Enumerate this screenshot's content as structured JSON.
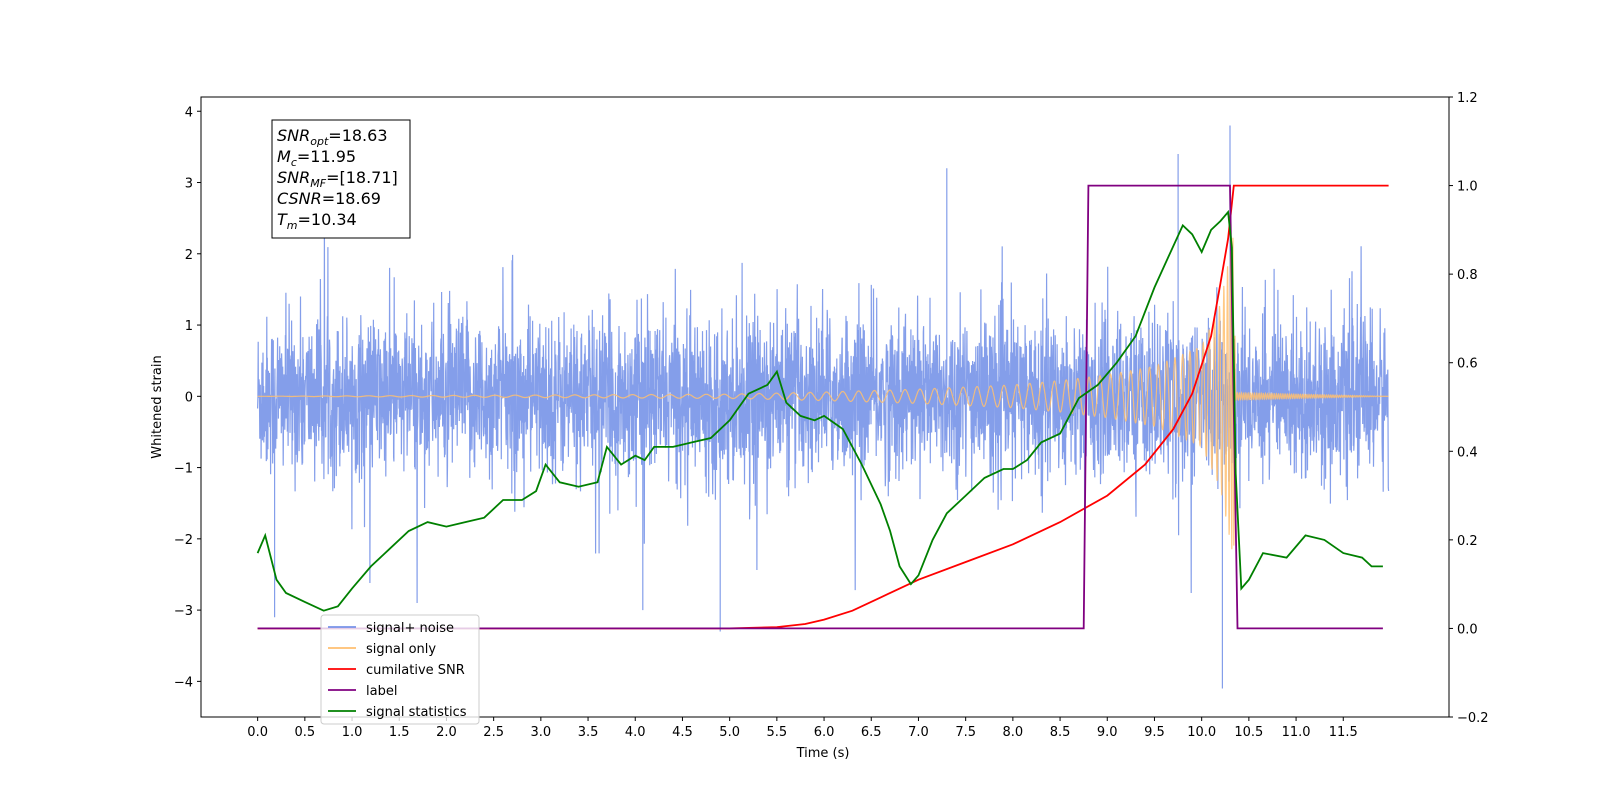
{
  "chart_data": {
    "type": "line",
    "xlabel": "Time (s)",
    "ylabel": "Whitened strain",
    "xlim": [
      -0.6,
      12.62
    ],
    "ylim": [
      -4.5,
      4.2
    ],
    "y2lim": [
      -0.2,
      1.2
    ],
    "grid": false,
    "legend_position": "lower-left",
    "x_ticks": [
      "0.0",
      "0.5",
      "1.0",
      "1.5",
      "2.0",
      "2.5",
      "3.0",
      "3.5",
      "4.0",
      "4.5",
      "5.0",
      "5.5",
      "6.0",
      "6.5",
      "7.0",
      "7.5",
      "8.0",
      "8.5",
      "9.0",
      "9.5",
      "10.0",
      "10.5",
      "11.0",
      "11.5"
    ],
    "y_ticks": [
      "4",
      "3",
      "2",
      "1",
      "0",
      "−1",
      "−2",
      "−3",
      "−4"
    ],
    "y2_ticks": [
      "1.2",
      "1.0",
      "0.8",
      "0.6",
      "0.4",
      "0.2",
      "0.0",
      "−0.2"
    ],
    "annotation_lines": [
      {
        "base": "SNR",
        "sub": "opt",
        "value": "=18.63"
      },
      {
        "base": "M",
        "sub": "c",
        "value": "=11.95"
      },
      {
        "base": "SNR",
        "sub": "MF",
        "value": "=[18.71]"
      },
      {
        "base": "CSNR",
        "sub": "",
        "value": "=18.69"
      },
      {
        "base": "T",
        "sub": "m",
        "value": "=10.34"
      }
    ],
    "series": [
      {
        "name": "signal+ noise",
        "color": "#7793e8",
        "axis": "left",
        "noise_std": 0.55,
        "notable_spikes": [
          {
            "x": 0.18,
            "y": -3.1
          },
          {
            "x": 4.08,
            "y": -3.0
          },
          {
            "x": 4.9,
            "y": -3.3
          },
          {
            "x": 7.3,
            "y": 3.2
          },
          {
            "x": 9.75,
            "y": 3.4
          },
          {
            "x": 10.22,
            "y": -4.1
          },
          {
            "x": 10.3,
            "y": 3.8
          }
        ],
        "x_range": [
          0.0,
          11.98
        ]
      },
      {
        "name": "signal only",
        "color": "#ffbf70",
        "axis": "left",
        "merger_time": 10.34,
        "amplitude_envelope": [
          [
            0.0,
            0.0
          ],
          [
            5.0,
            0.03
          ],
          [
            6.0,
            0.06
          ],
          [
            7.0,
            0.1
          ],
          [
            8.0,
            0.16
          ],
          [
            8.5,
            0.22
          ],
          [
            9.0,
            0.3
          ],
          [
            9.5,
            0.42
          ],
          [
            10.0,
            0.7
          ],
          [
            10.2,
            1.3
          ],
          [
            10.34,
            2.3
          ],
          [
            10.36,
            0.05
          ],
          [
            11.98,
            0.0
          ]
        ]
      },
      {
        "name": "cumilative SNR",
        "color": "#ff0000",
        "axis": "right",
        "points": [
          [
            0.0,
            0.0
          ],
          [
            5.0,
            0.0
          ],
          [
            5.5,
            0.003
          ],
          [
            5.8,
            0.01
          ],
          [
            6.0,
            0.02
          ],
          [
            6.3,
            0.04
          ],
          [
            6.6,
            0.07
          ],
          [
            7.0,
            0.11
          ],
          [
            7.5,
            0.15
          ],
          [
            8.0,
            0.19
          ],
          [
            8.5,
            0.24
          ],
          [
            9.0,
            0.3
          ],
          [
            9.4,
            0.37
          ],
          [
            9.7,
            0.45
          ],
          [
            9.9,
            0.53
          ],
          [
            10.1,
            0.66
          ],
          [
            10.2,
            0.78
          ],
          [
            10.28,
            0.88
          ],
          [
            10.34,
            1.0
          ],
          [
            11.98,
            1.0
          ]
        ]
      },
      {
        "name": "label",
        "color": "#800080",
        "axis": "right",
        "points": [
          [
            0.0,
            0.0
          ],
          [
            8.75,
            0.0
          ],
          [
            8.8,
            1.0
          ],
          [
            10.3,
            1.0
          ],
          [
            10.38,
            0.0
          ],
          [
            11.92,
            0.0
          ]
        ]
      },
      {
        "name": "signal statistics",
        "color": "#008000",
        "axis": "right",
        "points": [
          [
            0.0,
            0.17
          ],
          [
            0.08,
            0.21
          ],
          [
            0.2,
            0.11
          ],
          [
            0.3,
            0.08
          ],
          [
            0.5,
            0.06
          ],
          [
            0.7,
            0.04
          ],
          [
            0.85,
            0.05
          ],
          [
            1.0,
            0.09
          ],
          [
            1.2,
            0.14
          ],
          [
            1.4,
            0.18
          ],
          [
            1.6,
            0.22
          ],
          [
            1.8,
            0.24
          ],
          [
            2.0,
            0.23
          ],
          [
            2.2,
            0.24
          ],
          [
            2.4,
            0.25
          ],
          [
            2.6,
            0.29
          ],
          [
            2.8,
            0.29
          ],
          [
            2.95,
            0.31
          ],
          [
            3.05,
            0.37
          ],
          [
            3.2,
            0.33
          ],
          [
            3.4,
            0.32
          ],
          [
            3.6,
            0.33
          ],
          [
            3.7,
            0.41
          ],
          [
            3.85,
            0.37
          ],
          [
            4.0,
            0.39
          ],
          [
            4.1,
            0.38
          ],
          [
            4.2,
            0.41
          ],
          [
            4.4,
            0.41
          ],
          [
            4.6,
            0.42
          ],
          [
            4.8,
            0.43
          ],
          [
            5.0,
            0.47
          ],
          [
            5.2,
            0.53
          ],
          [
            5.4,
            0.55
          ],
          [
            5.5,
            0.58
          ],
          [
            5.6,
            0.51
          ],
          [
            5.75,
            0.48
          ],
          [
            5.9,
            0.47
          ],
          [
            6.0,
            0.48
          ],
          [
            6.2,
            0.45
          ],
          [
            6.4,
            0.37
          ],
          [
            6.6,
            0.28
          ],
          [
            6.7,
            0.22
          ],
          [
            6.8,
            0.14
          ],
          [
            6.92,
            0.1
          ],
          [
            7.0,
            0.12
          ],
          [
            7.15,
            0.2
          ],
          [
            7.3,
            0.26
          ],
          [
            7.5,
            0.3
          ],
          [
            7.7,
            0.34
          ],
          [
            7.9,
            0.36
          ],
          [
            8.0,
            0.36
          ],
          [
            8.15,
            0.38
          ],
          [
            8.3,
            0.42
          ],
          [
            8.5,
            0.44
          ],
          [
            8.7,
            0.52
          ],
          [
            8.9,
            0.55
          ],
          [
            9.1,
            0.6
          ],
          [
            9.3,
            0.66
          ],
          [
            9.5,
            0.77
          ],
          [
            9.65,
            0.84
          ],
          [
            9.8,
            0.91
          ],
          [
            9.9,
            0.89
          ],
          [
            10.0,
            0.85
          ],
          [
            10.1,
            0.9
          ],
          [
            10.2,
            0.92
          ],
          [
            10.28,
            0.94
          ],
          [
            10.32,
            0.86
          ],
          [
            10.36,
            0.35
          ],
          [
            10.42,
            0.09
          ],
          [
            10.5,
            0.11
          ],
          [
            10.65,
            0.17
          ],
          [
            10.9,
            0.16
          ],
          [
            11.1,
            0.21
          ],
          [
            11.3,
            0.2
          ],
          [
            11.5,
            0.17
          ],
          [
            11.7,
            0.16
          ],
          [
            11.8,
            0.14
          ],
          [
            11.92,
            0.14
          ]
        ]
      }
    ],
    "legend_entries": [
      {
        "label": "signal+ noise",
        "color": "#7793e8"
      },
      {
        "label": "signal only",
        "color": "#ffbf70"
      },
      {
        "label": "cumilative SNR",
        "color": "#ff0000"
      },
      {
        "label": "label",
        "color": "#800080"
      },
      {
        "label": "signal statistics",
        "color": "#008000"
      }
    ]
  }
}
